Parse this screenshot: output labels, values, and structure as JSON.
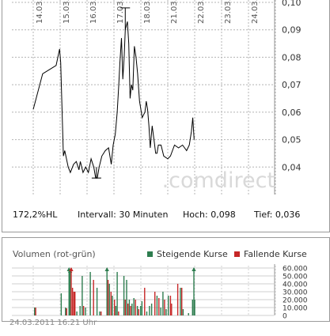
{
  "chart_data": [
    {
      "type": "line",
      "x_tick_labels": [
        "14.03.",
        "15.03.",
        "16.03.",
        "17.03.",
        "18.03.",
        "21.03.",
        "22.03.",
        "23.03.",
        "24.03."
      ],
      "y_tick_labels": [
        "0,04",
        "0,05",
        "0,06",
        "0,07",
        "0,08",
        "0,09",
        "0,10"
      ],
      "y_ticks": [
        0.04,
        0.05,
        0.06,
        0.07,
        0.08,
        0.09,
        0.1
      ],
      "ylim": [
        0.03,
        0.1
      ],
      "grid": true,
      "series": [
        {
          "color": "#000000",
          "points": [
            [
              0.0,
              0.061
            ],
            [
              0.35,
              0.074
            ],
            [
              0.85,
              0.077
            ],
            [
              0.98,
              0.083
            ],
            [
              1.02,
              0.078
            ],
            [
              1.12,
              0.044
            ],
            [
              1.17,
              0.046
            ],
            [
              1.3,
              0.04
            ],
            [
              1.38,
              0.038
            ],
            [
              1.5,
              0.041
            ],
            [
              1.6,
              0.042
            ],
            [
              1.7,
              0.039
            ],
            [
              1.75,
              0.042
            ],
            [
              1.85,
              0.038
            ],
            [
              1.95,
              0.04
            ],
            [
              2.05,
              0.038
            ],
            [
              2.15,
              0.043
            ],
            [
              2.25,
              0.04
            ],
            [
              2.32,
              0.036
            ],
            [
              2.38,
              0.036
            ],
            [
              2.45,
              0.04
            ],
            [
              2.55,
              0.044
            ],
            [
              2.68,
              0.046
            ],
            [
              2.8,
              0.047
            ],
            [
              2.9,
              0.041
            ],
            [
              2.97,
              0.048
            ],
            [
              3.05,
              0.052
            ],
            [
              3.12,
              0.06
            ],
            [
              3.18,
              0.07
            ],
            [
              3.22,
              0.078
            ],
            [
              3.28,
              0.087
            ],
            [
              3.33,
              0.072
            ],
            [
              3.38,
              0.08
            ],
            [
              3.42,
              0.09
            ],
            [
              3.5,
              0.093
            ],
            [
              3.55,
              0.085
            ],
            [
              3.6,
              0.065
            ],
            [
              3.65,
              0.07
            ],
            [
              3.7,
              0.068
            ],
            [
              3.76,
              0.084
            ],
            [
              3.82,
              0.08
            ],
            [
              3.88,
              0.074
            ],
            [
              3.95,
              0.064
            ],
            [
              4.05,
              0.058
            ],
            [
              4.15,
              0.06
            ],
            [
              4.2,
              0.064
            ],
            [
              4.25,
              0.061
            ],
            [
              4.3,
              0.055
            ],
            [
              4.35,
              0.047
            ],
            [
              4.42,
              0.055
            ],
            [
              4.5,
              0.049
            ],
            [
              4.55,
              0.045
            ],
            [
              4.6,
              0.045
            ],
            [
              4.65,
              0.048
            ],
            [
              4.75,
              0.048
            ],
            [
              4.85,
              0.044
            ],
            [
              5.0,
              0.043
            ],
            [
              5.1,
              0.044
            ],
            [
              5.25,
              0.048
            ],
            [
              5.4,
              0.047
            ],
            [
              5.55,
              0.048
            ],
            [
              5.7,
              0.046
            ],
            [
              5.8,
              0.048
            ],
            [
              5.88,
              0.053
            ],
            [
              5.93,
              0.058
            ],
            [
              5.98,
              0.05
            ]
          ]
        }
      ],
      "annotations": [
        {
          "label": "high",
          "value": 0.098
        },
        {
          "label": "low",
          "value": 0.036
        }
      ]
    },
    {
      "type": "bar",
      "title": "Volumen (rot-grün)",
      "y_tick_labels": [
        "0",
        "10.000",
        "20.000",
        "30.000",
        "40.000",
        "50.000",
        "60.000"
      ],
      "y_ticks": [
        0,
        10000,
        20000,
        30000,
        40000,
        50000,
        60000
      ],
      "ylim": [
        0,
        65000
      ],
      "legend_position": "top-right",
      "series": [
        {
          "name": "Steigende Kurse",
          "color": "#2e7d4f"
        },
        {
          "name": "Fallende Kurse",
          "color": "#c62828"
        }
      ],
      "bars": [
        {
          "x": 0.03,
          "v": 10000,
          "s": "up"
        },
        {
          "x": 0.07,
          "v": 10000,
          "s": "down"
        },
        {
          "x": 1.02,
          "v": 28000,
          "s": "up"
        },
        {
          "x": 1.18,
          "v": 10000,
          "s": "up"
        },
        {
          "x": 1.22,
          "v": 9000,
          "s": "down"
        },
        {
          "x": 1.31,
          "v": 60000,
          "s": "up"
        },
        {
          "x": 1.35,
          "v": 58000,
          "s": "up"
        },
        {
          "x": 1.39,
          "v": 60000,
          "s": "down"
        },
        {
          "x": 1.44,
          "v": 35000,
          "s": "down"
        },
        {
          "x": 1.49,
          "v": 30000,
          "s": "down"
        },
        {
          "x": 1.53,
          "v": 30000,
          "s": "down"
        },
        {
          "x": 1.6,
          "v": 5000,
          "s": "up"
        },
        {
          "x": 1.72,
          "v": 12000,
          "s": "up"
        },
        {
          "x": 1.8,
          "v": 50000,
          "s": "up"
        },
        {
          "x": 1.85,
          "v": 12000,
          "s": "down"
        },
        {
          "x": 1.92,
          "v": 10000,
          "s": "up"
        },
        {
          "x": 2.1,
          "v": 55000,
          "s": "up"
        },
        {
          "x": 2.22,
          "v": 45000,
          "s": "down"
        },
        {
          "x": 2.35,
          "v": 35000,
          "s": "up"
        },
        {
          "x": 2.45,
          "v": 5000,
          "s": "up"
        },
        {
          "x": 2.5,
          "v": 5000,
          "s": "down"
        },
        {
          "x": 2.72,
          "v": 60000,
          "s": "up"
        },
        {
          "x": 2.76,
          "v": 45000,
          "s": "down"
        },
        {
          "x": 2.81,
          "v": 40000,
          "s": "up"
        },
        {
          "x": 2.87,
          "v": 30000,
          "s": "down"
        },
        {
          "x": 2.92,
          "v": 25000,
          "s": "up"
        },
        {
          "x": 3.0,
          "v": 20000,
          "s": "down"
        },
        {
          "x": 3.05,
          "v": 12000,
          "s": "up"
        },
        {
          "x": 3.1,
          "v": 55000,
          "s": "up"
        },
        {
          "x": 3.15,
          "v": 5000,
          "s": "down"
        },
        {
          "x": 3.35,
          "v": 50000,
          "s": "up"
        },
        {
          "x": 3.4,
          "v": 20000,
          "s": "down"
        },
        {
          "x": 3.45,
          "v": 45000,
          "s": "up"
        },
        {
          "x": 3.5,
          "v": 15000,
          "s": "down"
        },
        {
          "x": 3.55,
          "v": 20000,
          "s": "up"
        },
        {
          "x": 3.6,
          "v": 12000,
          "s": "down"
        },
        {
          "x": 3.65,
          "v": 15000,
          "s": "up"
        },
        {
          "x": 3.72,
          "v": 22000,
          "s": "up"
        },
        {
          "x": 3.78,
          "v": 20000,
          "s": "down"
        },
        {
          "x": 3.85,
          "v": 12000,
          "s": "up"
        },
        {
          "x": 3.9,
          "v": 8000,
          "s": "down"
        },
        {
          "x": 3.97,
          "v": 12000,
          "s": "up"
        },
        {
          "x": 4.02,
          "v": 18000,
          "s": "up"
        },
        {
          "x": 4.12,
          "v": 35000,
          "s": "down"
        },
        {
          "x": 4.2,
          "v": 5000,
          "s": "up"
        },
        {
          "x": 4.3,
          "v": 12000,
          "s": "up"
        },
        {
          "x": 4.38,
          "v": 15000,
          "s": "up"
        },
        {
          "x": 4.5,
          "v": 30000,
          "s": "down"
        },
        {
          "x": 4.58,
          "v": 25000,
          "s": "up"
        },
        {
          "x": 4.65,
          "v": 22000,
          "s": "down"
        },
        {
          "x": 4.72,
          "v": 10000,
          "s": "up"
        },
        {
          "x": 4.8,
          "v": 30000,
          "s": "up"
        },
        {
          "x": 4.86,
          "v": 20000,
          "s": "down"
        },
        {
          "x": 4.92,
          "v": 8000,
          "s": "up"
        },
        {
          "x": 5.0,
          "v": 25000,
          "s": "up"
        },
        {
          "x": 5.08,
          "v": 25000,
          "s": "down"
        },
        {
          "x": 5.12,
          "v": 15000,
          "s": "down"
        },
        {
          "x": 5.35,
          "v": 40000,
          "s": "down"
        },
        {
          "x": 5.45,
          "v": 35000,
          "s": "up"
        },
        {
          "x": 5.5,
          "v": 35000,
          "s": "down"
        },
        {
          "x": 5.55,
          "v": 8000,
          "s": "up"
        },
        {
          "x": 5.75,
          "v": 3000,
          "s": "up"
        },
        {
          "x": 5.9,
          "v": 20000,
          "s": "up"
        },
        {
          "x": 5.95,
          "v": 60000,
          "s": "up"
        },
        {
          "x": 5.98,
          "v": 20000,
          "s": "up"
        }
      ]
    }
  ],
  "watermark": ".comdirect",
  "stats": {
    "hl": "172,2%HL",
    "interval": "Intervall: 30 Minuten",
    "high": "Hoch:  0,098",
    "low": "Tief:  0,036"
  },
  "volume": {
    "title": "Volumen (rot-grün)",
    "legend_up": "Steigende Kurse",
    "legend_down": "Fallende Kurse",
    "color_up": "#2e7d4f",
    "color_down": "#c62828"
  },
  "timestamp": "24.03.2011 16:21 Uhr"
}
